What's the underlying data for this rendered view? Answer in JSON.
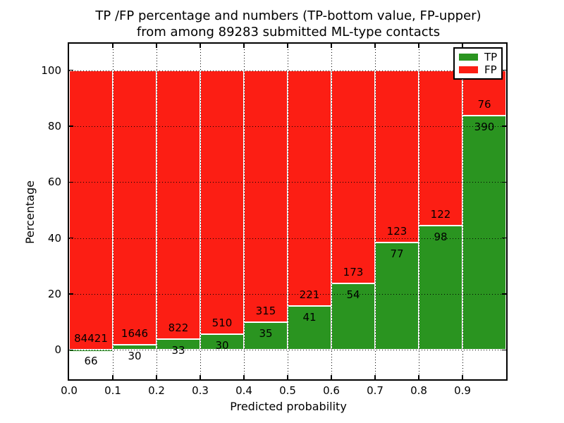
{
  "figure": {
    "title_line1": "TP /FP percentage and numbers (TP-bottom value, FP-upper)",
    "title_line2": "from among 89283 submitted ML-type contacts"
  },
  "chart_data": {
    "type": "bar",
    "stacked": true,
    "title": "TP /FP percentage and numbers (TP-bottom value, FP-upper) from among 89283 submitted ML-type contacts",
    "xlabel": "Predicted probability",
    "ylabel": "Percentage",
    "total_contacts": 89283,
    "bin_starts": [
      0.0,
      0.1,
      0.2,
      0.3,
      0.4,
      0.5,
      0.6,
      0.7,
      0.8,
      0.9
    ],
    "bin_width": 0.1,
    "x_tick_labels": [
      "0.0",
      "0.1",
      "0.2",
      "0.3",
      "0.4",
      "0.5",
      "0.6",
      "0.7",
      "0.8",
      "0.9"
    ],
    "y_ticks": [
      0,
      20,
      40,
      60,
      80,
      100
    ],
    "y_tick_labels": [
      "0",
      "20",
      "40",
      "60",
      "80",
      "100"
    ],
    "xlim": [
      0.0,
      1.0
    ],
    "ylim": [
      -10.5,
      109.5
    ],
    "grid": true,
    "grid_style": "dotted",
    "series": [
      {
        "name": "TP",
        "counts": [
          66,
          30,
          33,
          30,
          35,
          41,
          54,
          77,
          98,
          390
        ],
        "percent": [
          0.08,
          1.79,
          3.86,
          5.56,
          10.0,
          15.65,
          23.79,
          38.5,
          44.55,
          83.69
        ]
      },
      {
        "name": "FP",
        "counts": [
          84421,
          1646,
          822,
          510,
          315,
          221,
          173,
          123,
          122,
          76
        ],
        "percent": [
          99.92,
          98.21,
          96.14,
          94.44,
          90.0,
          84.35,
          76.21,
          61.5,
          55.45,
          16.31
        ]
      }
    ],
    "legend": {
      "position": "upper right",
      "entries": [
        {
          "label": "TP",
          "color": "#2a9420"
        },
        {
          "label": "FP",
          "color": "#fc1e14"
        }
      ]
    },
    "colors": {
      "tp": "#2a9420",
      "fp": "#fc1e14",
      "bar_edge": "#ffffff",
      "axis": "#000000"
    }
  }
}
